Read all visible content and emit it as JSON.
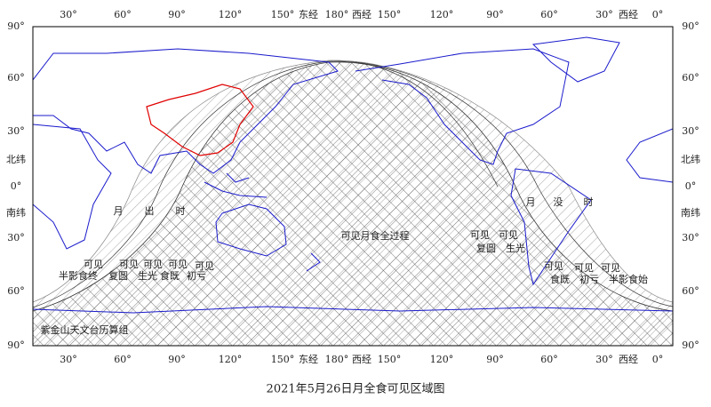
{
  "map": {
    "lon_labels": [
      "30°",
      "60°",
      "90°",
      "120°",
      "150°",
      "东经",
      "180°",
      "西经",
      "150°",
      "120°",
      "90°",
      "60°",
      "30°",
      "西经",
      "0°"
    ],
    "lat_labels": [
      "90°",
      "60°",
      "30°",
      "北纬",
      "0°",
      "南纬",
      "30°",
      "60°",
      "90°"
    ],
    "moonrise_label": [
      "月",
      "出",
      "时"
    ],
    "moonset_label": [
      "月",
      "没",
      "时"
    ],
    "total_label": "可见月食全过程",
    "contacts_west": [
      {
        "line1": "可见",
        "line2": "半影食终"
      },
      {
        "line1": "可见",
        "line2": "复圆"
      },
      {
        "line1": "可见",
        "line2": "生光"
      },
      {
        "line1": "可见",
        "line2": "食既"
      },
      {
        "line1": "可见",
        "line2": "初亏"
      }
    ],
    "contacts_east": [
      {
        "line1": "可见",
        "line2": "复圆"
      },
      {
        "line1": "可见",
        "line2": "生光"
      },
      {
        "line1": "可见",
        "line2": "食既"
      },
      {
        "line1": "可见",
        "line2": "初亏"
      },
      {
        "line1": "可见",
        "line2": "半影食始"
      }
    ],
    "credit": "紫金山天文台历算组"
  },
  "caption": "2021年5月26日月全食可见区域图"
}
